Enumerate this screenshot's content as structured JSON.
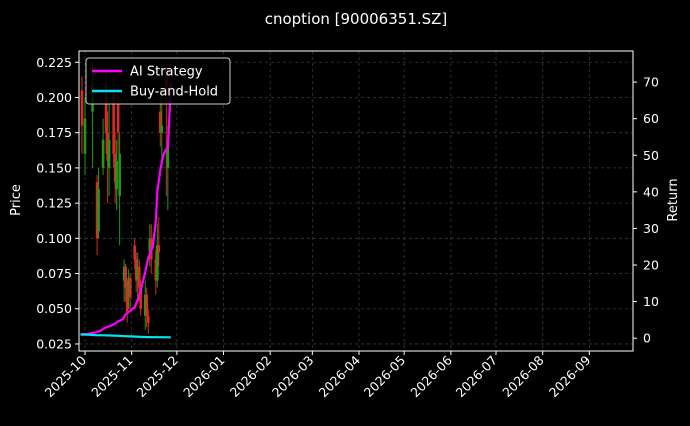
{
  "chart_data": {
    "type": "candlestick+line",
    "title": "cnoption [90006351.SZ]",
    "xlabel": "",
    "ylabel_left": "Price",
    "ylabel_right": "Return",
    "ylim_left": [
      0.02,
      0.233
    ],
    "ylim_right": [
      -3.5,
      78.5
    ],
    "xlim": [
      "2025-09-27",
      "2026-09-30"
    ],
    "y_ticks_left": [
      "0.025",
      "0.050",
      "0.075",
      "0.100",
      "0.125",
      "0.150",
      "0.175",
      "0.200",
      "0.225"
    ],
    "y_ticks_right": [
      "0",
      "10",
      "20",
      "30",
      "40",
      "50",
      "60",
      "70"
    ],
    "x_ticks": [
      "2025-10",
      "2025-11",
      "2025-12",
      "2026-01",
      "2026-02",
      "2026-03",
      "2026-04",
      "2026-05",
      "2026-06",
      "2026-07",
      "2026-08",
      "2026-09"
    ],
    "grid": true,
    "legend_position": "top-left",
    "colors": {
      "background": "#000000",
      "grid": "#3a3a3a",
      "up_candle": "#1f9a1f",
      "down_candle": "#d62d20",
      "ai_strategy": "#ff00ff",
      "buy_and_hold": "#00e5ee"
    },
    "series": [
      {
        "name": "AI Strategy",
        "x": [
          "2025-09-28",
          "2025-10-03",
          "2025-10-08",
          "2025-10-11",
          "2025-10-14",
          "2025-10-18",
          "2025-10-21",
          "2025-10-23",
          "2025-10-26",
          "2025-10-28",
          "2025-10-31",
          "2025-11-03",
          "2025-11-05",
          "2025-11-07",
          "2025-11-10",
          "2025-11-12",
          "2025-11-15",
          "2025-11-17",
          "2025-11-18",
          "2025-11-20",
          "2025-11-22",
          "2025-11-23",
          "2025-11-25",
          "2025-11-26",
          "2025-11-27"
        ],
        "values": [
          1.0,
          1.2,
          1.6,
          2.0,
          2.8,
          3.4,
          4.0,
          4.6,
          5.2,
          6.5,
          7.5,
          8.5,
          10.5,
          13.0,
          18.0,
          22.0,
          25.0,
          32.0,
          40.0,
          46.0,
          50.0,
          51.0,
          52.0,
          60.0,
          70.0
        ]
      },
      {
        "name": "Buy-and-Hold",
        "x": [
          "2025-09-28",
          "2025-10-03",
          "2025-10-08",
          "2025-10-13",
          "2025-10-18",
          "2025-10-23",
          "2025-10-28",
          "2025-11-02",
          "2025-11-07",
          "2025-11-12",
          "2025-11-17",
          "2025-11-22",
          "2025-11-27"
        ],
        "values": [
          1.0,
          0.95,
          0.85,
          0.8,
          0.75,
          0.65,
          0.55,
          0.45,
          0.35,
          0.3,
          0.28,
          0.26,
          0.25
        ]
      }
    ],
    "candles": [
      {
        "date": "2025-09-29",
        "open": 0.205,
        "close": 0.18,
        "high": 0.215,
        "low": 0.16
      },
      {
        "date": "2025-10-01",
        "open": 0.16,
        "close": 0.185,
        "high": 0.2,
        "low": 0.145
      },
      {
        "date": "2025-10-06",
        "open": 0.19,
        "close": 0.21,
        "high": 0.225,
        "low": 0.15
      },
      {
        "date": "2025-10-09",
        "open": 0.14,
        "close": 0.1,
        "high": 0.145,
        "low": 0.088
      },
      {
        "date": "2025-10-10",
        "open": 0.105,
        "close": 0.135,
        "high": 0.15,
        "low": 0.1
      },
      {
        "date": "2025-10-13",
        "open": 0.15,
        "close": 0.17,
        "high": 0.185,
        "low": 0.145
      },
      {
        "date": "2025-10-15",
        "open": 0.21,
        "close": 0.175,
        "high": 0.22,
        "low": 0.16
      },
      {
        "date": "2025-10-16",
        "open": 0.175,
        "close": 0.155,
        "high": 0.19,
        "low": 0.125
      },
      {
        "date": "2025-10-17",
        "open": 0.15,
        "close": 0.17,
        "high": 0.195,
        "low": 0.13
      },
      {
        "date": "2025-10-20",
        "open": 0.205,
        "close": 0.16,
        "high": 0.215,
        "low": 0.15
      },
      {
        "date": "2025-10-21",
        "open": 0.16,
        "close": 0.14,
        "high": 0.175,
        "low": 0.125
      },
      {
        "date": "2025-10-22",
        "open": 0.135,
        "close": 0.155,
        "high": 0.17,
        "low": 0.12
      },
      {
        "date": "2025-10-23",
        "open": 0.195,
        "close": 0.175,
        "high": 0.21,
        "low": 0.16
      },
      {
        "date": "2025-10-24",
        "open": 0.13,
        "close": 0.16,
        "high": 0.175,
        "low": 0.095
      },
      {
        "date": "2025-10-27",
        "open": 0.07,
        "close": 0.08,
        "high": 0.085,
        "low": 0.055
      },
      {
        "date": "2025-10-28",
        "open": 0.08,
        "close": 0.065,
        "high": 0.082,
        "low": 0.055
      },
      {
        "date": "2025-10-29",
        "open": 0.065,
        "close": 0.048,
        "high": 0.07,
        "low": 0.04
      },
      {
        "date": "2025-10-30",
        "open": 0.06,
        "close": 0.072,
        "high": 0.078,
        "low": 0.05
      },
      {
        "date": "2025-10-31",
        "open": 0.072,
        "close": 0.058,
        "high": 0.075,
        "low": 0.05
      },
      {
        "date": "2025-11-03",
        "open": 0.095,
        "close": 0.085,
        "high": 0.1,
        "low": 0.078
      },
      {
        "date": "2025-11-04",
        "open": 0.085,
        "close": 0.07,
        "high": 0.09,
        "low": 0.062
      },
      {
        "date": "2025-11-05",
        "open": 0.07,
        "close": 0.08,
        "high": 0.09,
        "low": 0.055
      },
      {
        "date": "2025-11-06",
        "open": 0.08,
        "close": 0.065,
        "high": 0.085,
        "low": 0.055
      },
      {
        "date": "2025-11-07",
        "open": 0.065,
        "close": 0.05,
        "high": 0.07,
        "low": 0.045
      },
      {
        "date": "2025-11-10",
        "open": 0.045,
        "close": 0.06,
        "high": 0.07,
        "low": 0.035
      },
      {
        "date": "2025-11-11",
        "open": 0.06,
        "close": 0.045,
        "high": 0.065,
        "low": 0.037
      },
      {
        "date": "2025-11-12",
        "open": 0.045,
        "close": 0.04,
        "high": 0.05,
        "low": 0.032
      },
      {
        "date": "2025-11-13",
        "open": 0.09,
        "close": 0.1,
        "high": 0.11,
        "low": 0.08
      },
      {
        "date": "2025-11-14",
        "open": 0.1,
        "close": 0.085,
        "high": 0.11,
        "low": 0.075
      },
      {
        "date": "2025-11-17",
        "open": 0.085,
        "close": 0.07,
        "high": 0.092,
        "low": 0.06
      },
      {
        "date": "2025-11-18",
        "open": 0.07,
        "close": 0.095,
        "high": 0.11,
        "low": 0.065
      },
      {
        "date": "2025-11-19",
        "open": 0.095,
        "close": 0.09,
        "high": 0.115,
        "low": 0.08
      },
      {
        "date": "2025-11-20",
        "open": 0.19,
        "close": 0.175,
        "high": 0.21,
        "low": 0.165
      },
      {
        "date": "2025-11-21",
        "open": 0.175,
        "close": 0.18,
        "high": 0.2,
        "low": 0.15
      },
      {
        "date": "2025-11-24",
        "open": 0.22,
        "close": 0.205,
        "high": 0.225,
        "low": 0.13
      },
      {
        "date": "2025-11-25",
        "open": 0.15,
        "close": 0.165,
        "high": 0.18,
        "low": 0.12
      }
    ]
  }
}
